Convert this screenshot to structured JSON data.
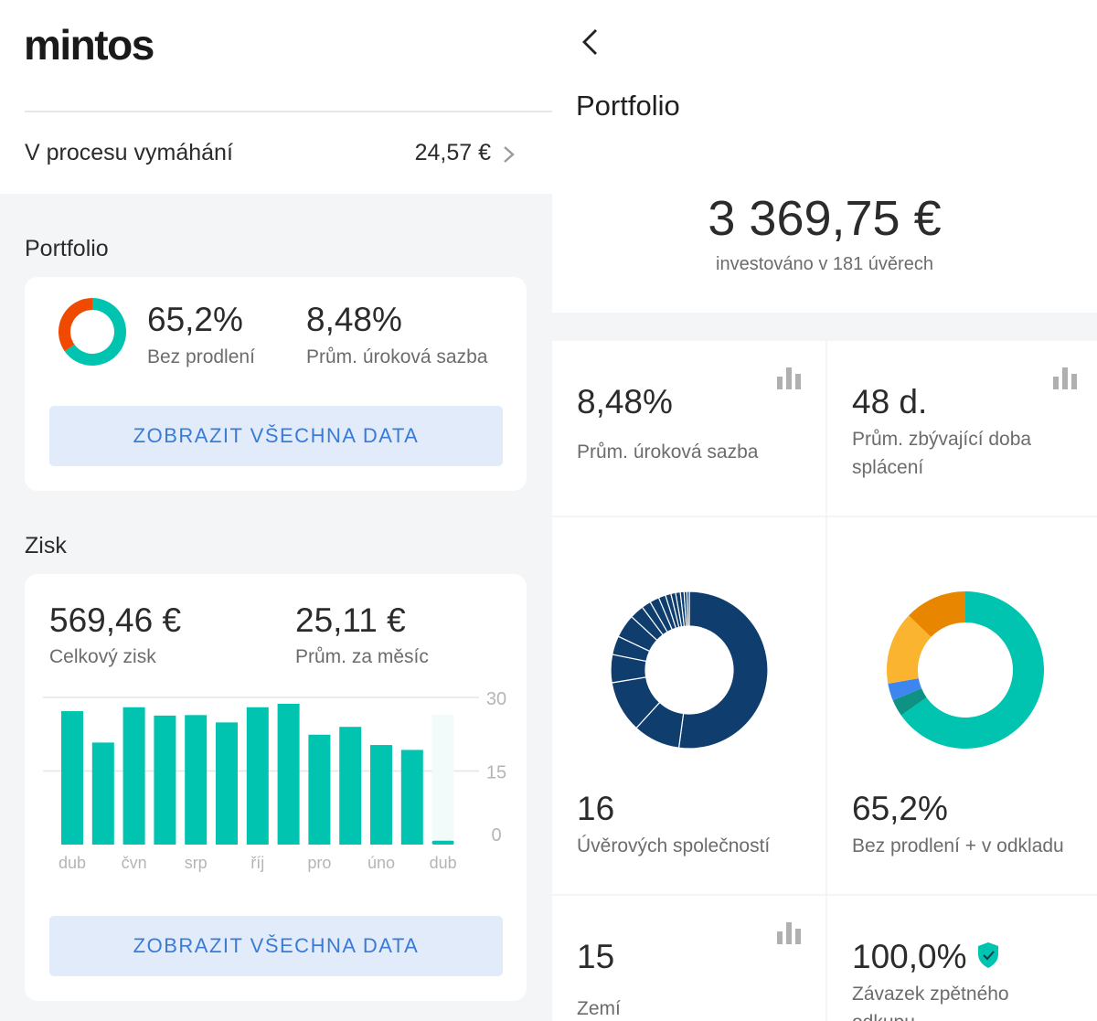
{
  "left": {
    "logo": "mintos",
    "recovery": {
      "label": "V procesu vymáhání",
      "value": "24,57 €"
    },
    "portfolio": {
      "title": "Portfolio",
      "stat1_value": "65,2%",
      "stat1_label": "Bez prodlení",
      "stat2_value": "8,48%",
      "stat2_label": "Prům. úroková sazba",
      "cta": "ZOBRAZIT VŠECHNA DATA",
      "donut": {
        "current_share": 0.652,
        "colors": [
          "#00c4b0",
          "#f04a00"
        ]
      }
    },
    "profit": {
      "title": "Zisk",
      "stat1_value": "569,46 €",
      "stat1_label": "Celkový zisk",
      "stat2_value": "25,11 €",
      "stat2_label": "Prům. za měsíc",
      "cta": "ZOBRAZIT VŠECHNA DATA"
    }
  },
  "chart_data": {
    "type": "bar",
    "categories": [
      "dub",
      "",
      "čvn",
      "",
      "srp",
      "",
      "říj",
      "",
      "pro",
      "",
      "úno",
      "",
      "dub"
    ],
    "values": [
      27.2,
      20.8,
      28.0,
      26.3,
      26.4,
      24.9,
      28.0,
      28.7,
      22.4,
      24.0,
      20.3,
      19.3,
      0.8
    ],
    "ylim": [
      0,
      30
    ],
    "yticks": [
      "30",
      "15",
      "0"
    ],
    "xlabel": "",
    "ylabel": "",
    "color": "#00c4b0",
    "grid": true
  },
  "right": {
    "title": "Portfolio",
    "total_value": "3 369,75 €",
    "total_sub": "investováno v 181 úvěrech",
    "tiles": [
      {
        "value": "8,48%",
        "label": "Prům. úroková sazba"
      },
      {
        "value": "48 d.",
        "label": "Prům. zbývající doba splácení"
      },
      {
        "value": "16",
        "label": "Úvěrových společností"
      },
      {
        "value": "65,2%",
        "label": "Bez prodlení + v odkladu"
      },
      {
        "value": "15",
        "label": "Zemí"
      },
      {
        "value": "100,0%",
        "label": "Závazek zpětného odkupu"
      }
    ],
    "lenders_donut": [
      0.54,
      0.1,
      0.11,
      0.06,
      0.04,
      0.05,
      0.03,
      0.02,
      0.02,
      0.015,
      0.012,
      0.01,
      0.01,
      0.008,
      0.006,
      0.005
    ],
    "lenders_color": "#0f3d6e",
    "status_donut": [
      {
        "share": 0.652,
        "color": "#00c4b0"
      },
      {
        "share": 0.035,
        "color": "#0e9283"
      },
      {
        "share": 0.035,
        "color": "#3d86f0"
      },
      {
        "share": 0.15,
        "color": "#fbb430"
      },
      {
        "share": 0.128,
        "color": "#e88600"
      }
    ]
  }
}
